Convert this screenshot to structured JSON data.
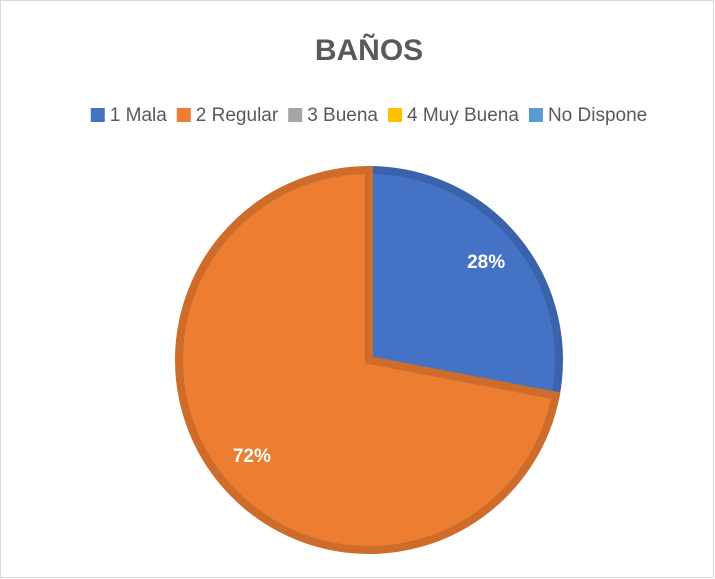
{
  "chart_data": {
    "type": "pie",
    "title": "BAÑOS",
    "categories": [
      "1 Mala",
      "2 Regular",
      "3  Buena",
      "4 Muy Buena",
      "No Dispone"
    ],
    "values": [
      28,
      72,
      0,
      0,
      0
    ],
    "value_labels": [
      "28%",
      "72%",
      null,
      null,
      null
    ],
    "colors": [
      "#4472c4",
      "#ed7d31",
      "#a5a5a5",
      "#ffc000",
      "#5b9bd5"
    ],
    "legend": "top"
  }
}
